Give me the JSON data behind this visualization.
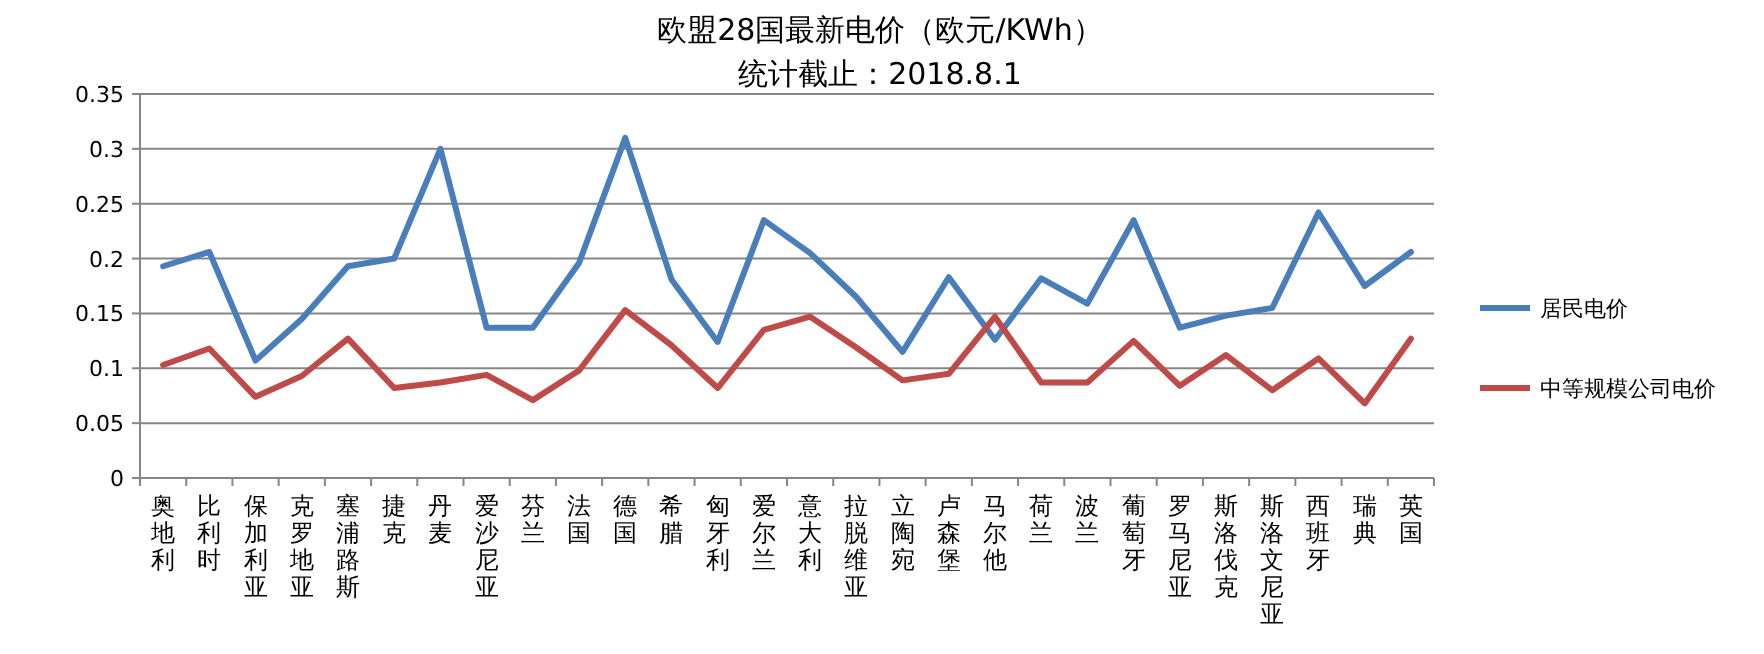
{
  "chart_data": {
    "type": "line",
    "title": "欧盟28国最新电价（欧元/KWh）",
    "subtitle": "统计截止：2018.8.1",
    "categories": [
      "奥地利",
      "比利时",
      "保加利亚",
      "克罗地亚",
      "塞浦路斯",
      "捷克",
      "丹麦",
      "爱沙尼亚",
      "芬兰",
      "法国",
      "德国",
      "希腊",
      "匈牙利",
      "爱尔兰",
      "意大利",
      "拉脱维亚",
      "立陶宛",
      "卢森堡",
      "马尔他",
      "荷兰",
      "波兰",
      "葡萄牙",
      "罗马尼亚",
      "斯洛伐克",
      "斯洛文尼亚",
      "西班牙",
      "瑞典",
      "英国"
    ],
    "series": [
      {
        "name": "居民电价",
        "color": "#4a7ebb",
        "values": [
          0.193,
          0.206,
          0.107,
          0.145,
          0.193,
          0.2,
          0.3,
          0.137,
          0.137,
          0.196,
          0.31,
          0.181,
          0.124,
          0.235,
          0.205,
          0.165,
          0.115,
          0.183,
          0.126,
          0.182,
          0.159,
          0.235,
          0.137,
          0.148,
          0.155,
          0.242,
          0.175,
          0.206
        ]
      },
      {
        "name": "中等规模公司电价",
        "color": "#be4b48",
        "values": [
          0.103,
          0.118,
          0.074,
          0.093,
          0.127,
          0.082,
          0.087,
          0.094,
          0.071,
          0.098,
          0.153,
          0.121,
          0.082,
          0.135,
          0.147,
          0.119,
          0.089,
          0.095,
          0.147,
          0.087,
          0.087,
          0.125,
          0.084,
          0.112,
          0.08,
          0.109,
          0.068,
          0.127
        ]
      }
    ],
    "ylim": [
      0,
      0.35
    ],
    "yticks": [
      0,
      0.05,
      0.1,
      0.15,
      0.2,
      0.25,
      0.3,
      0.35
    ],
    "grid": "y",
    "legend": "right",
    "marker": "none",
    "line_style": "solid"
  }
}
